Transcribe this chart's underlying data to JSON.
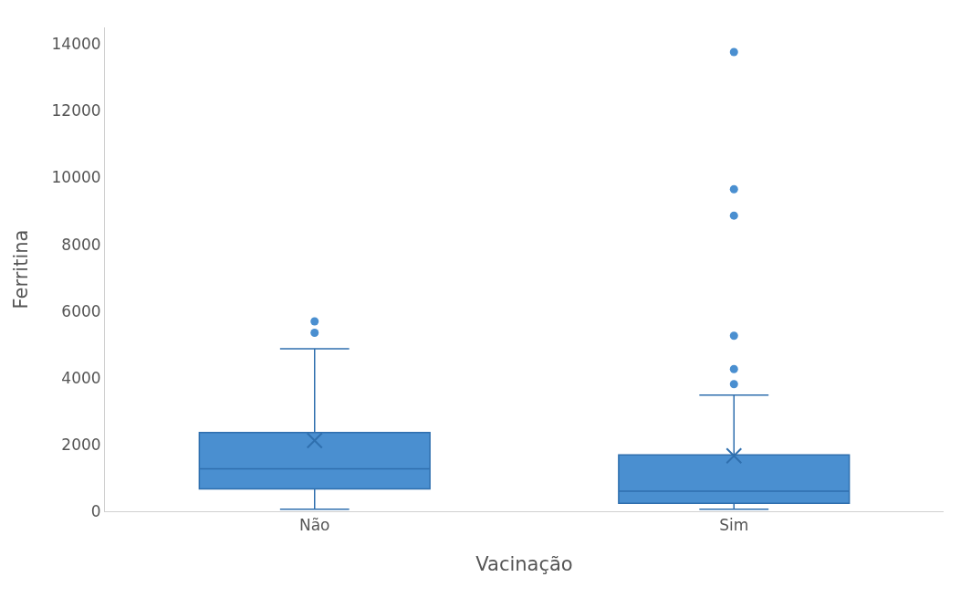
{
  "chart_data": {
    "type": "box",
    "xlabel": "Vacinação",
    "ylabel": "Ferritina",
    "categories": [
      "Não",
      "Sim"
    ],
    "color": "#4a8fd0",
    "boxes": [
      {
        "low": 60,
        "q1": 670,
        "median": 1270,
        "q3": 2360,
        "high": 4870,
        "mean": 2120,
        "outliers": [
          5350,
          5690
        ]
      },
      {
        "low": 60,
        "q1": 240,
        "median": 600,
        "q3": 1690,
        "high": 3480,
        "mean": 1660,
        "outliers": [
          3810,
          4260,
          5260,
          8860,
          9650,
          13760
        ]
      }
    ],
    "ylim": [
      0,
      14500
    ],
    "yticks": [
      0,
      2000,
      4000,
      6000,
      8000,
      10000,
      12000,
      14000
    ],
    "grid": false
  }
}
